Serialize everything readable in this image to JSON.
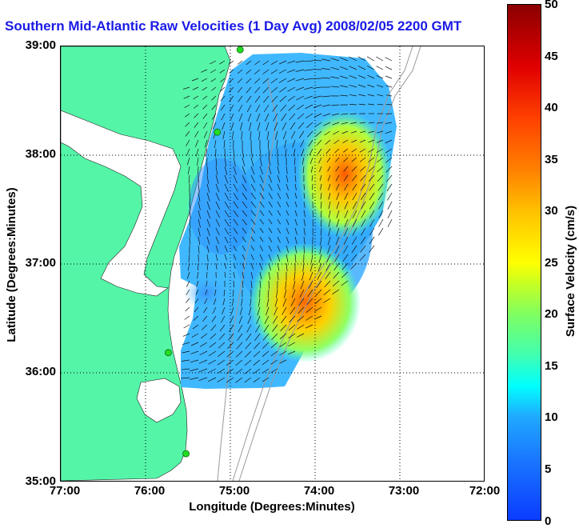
{
  "title": "Southern Mid-Atlantic Raw Velocities (1 Day Avg) 2008/02/05 2200 GMT",
  "axes": {
    "x_label": "Longitude (Degrees:Minutes)",
    "y_label": "Latitude (Degrees:Minutes)",
    "x_ticks": [
      "77:00",
      "76:00",
      "75:00",
      "74:00",
      "73:00",
      "72:00"
    ],
    "y_ticks": [
      "39:00",
      "38:00",
      "37:00",
      "36:00",
      "35:00"
    ],
    "lon_range": [
      -77,
      -72
    ],
    "lat_range": [
      35,
      39
    ]
  },
  "colorbar": {
    "label": "Surface Velocity (cm/s)",
    "ticks": [
      "50",
      "45",
      "40",
      "35",
      "30",
      "25",
      "20",
      "15",
      "10",
      "5",
      "0"
    ],
    "range": [
      0,
      50
    ]
  },
  "colors": {
    "land": "#55f5a8",
    "title": "#1a1ae6",
    "bathymetry": "#999999",
    "station": "#22dd22"
  },
  "stations": [
    {
      "name": "station-1",
      "lon": -74.88,
      "lat": 38.97
    },
    {
      "name": "station-2",
      "lon": -75.15,
      "lat": 38.21
    },
    {
      "name": "station-3",
      "lon": -75.73,
      "lat": 36.18
    },
    {
      "name": "station-4",
      "lon": -75.52,
      "lat": 35.25
    }
  ]
}
